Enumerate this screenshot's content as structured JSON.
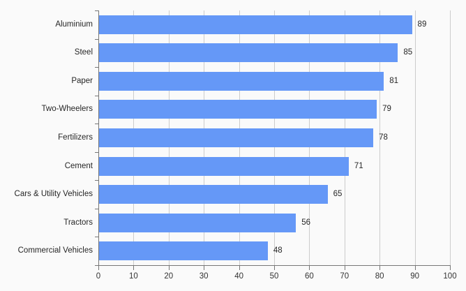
{
  "chart_data": {
    "type": "bar",
    "orientation": "horizontal",
    "title": "",
    "xlabel": "",
    "ylabel": "",
    "categories": [
      "Aluminium",
      "Steel",
      "Paper",
      "Two-Wheelers",
      "Fertilizers",
      "Cement",
      "Cars & Utility Vehicles",
      "Tractors",
      "Commercial Vehicles"
    ],
    "values": [
      89,
      85,
      81,
      79,
      78,
      71,
      65,
      56,
      48
    ],
    "value_labels_shown": true,
    "xlim": [
      0,
      100
    ],
    "xticks": [
      0,
      10,
      20,
      30,
      40,
      50,
      60,
      70,
      80,
      90,
      100
    ],
    "grid": "vertical",
    "legend": "none"
  },
  "colors": {
    "background": "#fafafa",
    "bar": "#6598f7",
    "gridline": "#cccccc",
    "axis": "#767676",
    "label_text": "#262626",
    "tick_text": "#333333"
  }
}
